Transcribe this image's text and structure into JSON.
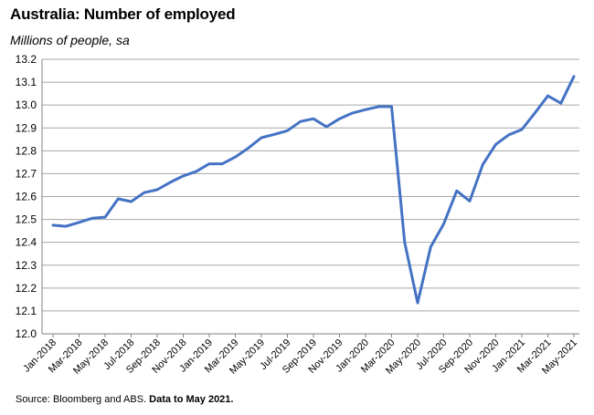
{
  "chart_data": {
    "type": "line",
    "title": "Australia: Number of employed",
    "subtitle": "Millions of people, sa",
    "xlabel": "",
    "ylabel": "",
    "ylim": [
      12.0,
      13.2
    ],
    "yticks": [
      "12.0",
      "12.1",
      "12.2",
      "12.3",
      "12.4",
      "12.5",
      "12.6",
      "12.7",
      "12.8",
      "12.9",
      "13.0",
      "13.1",
      "13.2"
    ],
    "grid": true,
    "legend": "none",
    "line_color": "#4472C4",
    "x": [
      "Jan-2018",
      "Feb-2018",
      "Mar-2018",
      "Apr-2018",
      "May-2018",
      "Jun-2018",
      "Jul-2018",
      "Aug-2018",
      "Sep-2018",
      "Oct-2018",
      "Nov-2018",
      "Dec-2018",
      "Jan-2019",
      "Feb-2019",
      "Mar-2019",
      "Apr-2019",
      "May-2019",
      "Jun-2019",
      "Jul-2019",
      "Aug-2019",
      "Sep-2019",
      "Oct-2019",
      "Nov-2019",
      "Dec-2019",
      "Jan-2020",
      "Feb-2020",
      "Mar-2020",
      "Apr-2020",
      "May-2020",
      "Jun-2020",
      "Jul-2020",
      "Aug-2020",
      "Sep-2020",
      "Oct-2020",
      "Nov-2020",
      "Dec-2020",
      "Jan-2021",
      "Feb-2021",
      "Mar-2021",
      "Apr-2021",
      "May-2021"
    ],
    "xtick_labels": [
      "Jan-2018",
      "Mar-2018",
      "May-2018",
      "Jul-2018",
      "Sep-2018",
      "Nov-2018",
      "Jan-2019",
      "Mar-2019",
      "May-2019",
      "Jul-2019",
      "Sep-2019",
      "Nov-2019",
      "Jan-2020",
      "Mar-2020",
      "May-2020",
      "Jul-2020",
      "Sep-2020",
      "Nov-2020",
      "Jan-2021",
      "Mar-2021",
      "May-2021"
    ],
    "series": [
      {
        "values": [
          12.475,
          12.47,
          12.487,
          12.505,
          12.51,
          12.59,
          12.578,
          12.617,
          12.63,
          12.662,
          12.69,
          12.71,
          12.743,
          12.743,
          12.773,
          12.812,
          12.857,
          12.872,
          12.888,
          12.928,
          12.94,
          12.905,
          12.94,
          12.965,
          12.98,
          12.993,
          12.993,
          12.4,
          12.135,
          12.38,
          12.48,
          12.625,
          12.58,
          12.74,
          12.828,
          12.87,
          12.893,
          12.965,
          13.04,
          13.008,
          13.125
        ]
      }
    ]
  },
  "source": {
    "text": "Source: Bloomberg and ABS.",
    "bold": "Data to May 2021."
  }
}
